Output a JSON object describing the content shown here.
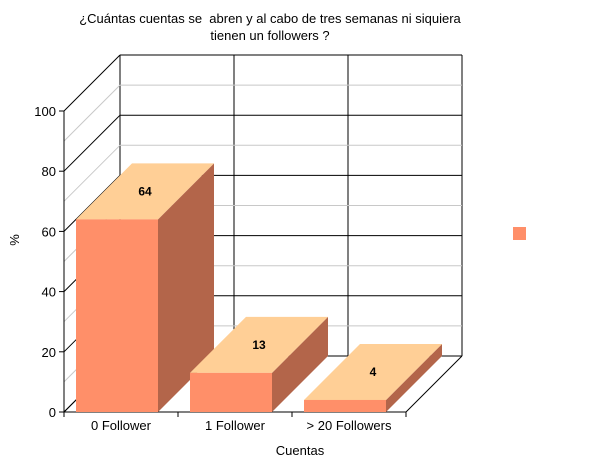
{
  "chart_data": {
    "type": "bar",
    "title_lines": [
      "¿Cuántas cuentas se  abren y al cabo de tres semanas ni siquiera",
      "tienen un followers ?"
    ],
    "categories": [
      "0 Follower",
      "1 Follower",
      "> 20 Followers"
    ],
    "values": [
      64,
      13,
      4
    ],
    "data_labels": [
      "64",
      "13",
      "4"
    ],
    "xlabel": "Cuentas",
    "ylabel": "%",
    "ylim": [
      0,
      100
    ],
    "yticks": [
      "0",
      "20",
      "40",
      "60",
      "80",
      "100"
    ],
    "grid": true,
    "three_d": true,
    "legend": {
      "placement": "right",
      "entries": [
        ""
      ]
    },
    "colors": {
      "front": "#ff8f69",
      "top": "#ffcf96",
      "side": "#b3654a",
      "legend_swatch": "#ff8f69",
      "grid": "#000000",
      "minor_grid": "#c8c8c8"
    }
  }
}
